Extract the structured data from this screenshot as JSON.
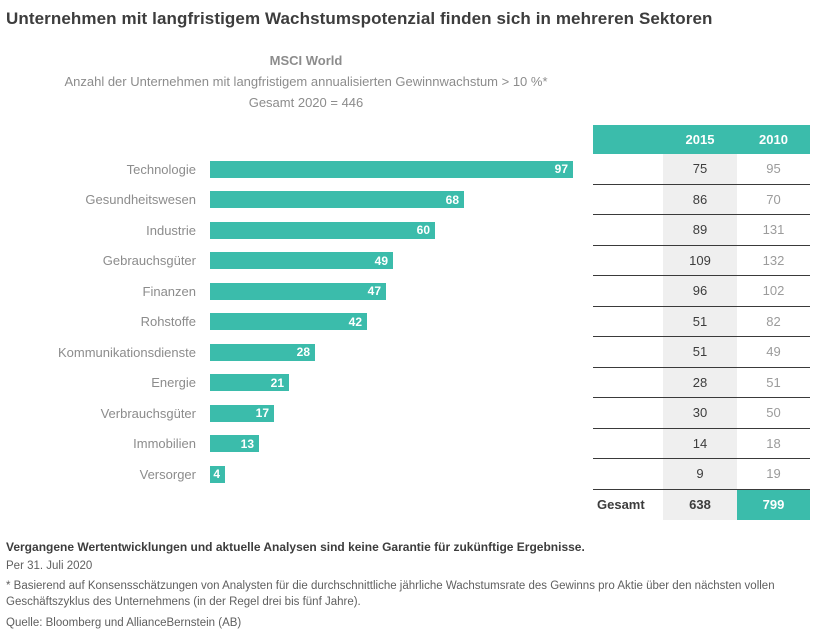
{
  "title": "Unternehmen mit langfristigem Wachstumspotenzial finden sich in mehreren Sektoren",
  "subtitle": {
    "index_name": "MSCI World",
    "description": "Anzahl der Unternehmen mit langfristigem annualisierten Gewinnwachstum > 10 %*",
    "total_line": "Gesamt 2020 = 446"
  },
  "chart_data": {
    "type": "bar",
    "orientation": "horizontal",
    "title": "MSCI World",
    "subtitle": "Anzahl der Unternehmen mit langfristigem annualisierten Gewinnwachstum > 10 %*",
    "categories": [
      "Technologie",
      "Gesundheitswesen",
      "Industrie",
      "Gebrauchsgüter",
      "Finanzen",
      "Rohstoffe",
      "Kommunikationsdienste",
      "Energie",
      "Verbrauchsgüter",
      "Immobilien",
      "Versorger"
    ],
    "series": [
      {
        "name": "2020",
        "values": [
          97,
          68,
          60,
          49,
          47,
          42,
          28,
          21,
          17,
          13,
          4
        ]
      },
      {
        "name": "2015",
        "values": [
          75,
          86,
          89,
          109,
          96,
          51,
          51,
          28,
          30,
          14,
          9
        ]
      },
      {
        "name": "2010",
        "values": [
          95,
          70,
          131,
          132,
          102,
          82,
          49,
          51,
          50,
          18,
          19
        ]
      }
    ],
    "totals": {
      "2020": 446,
      "2015": 638,
      "2010": 799
    },
    "xlim": [
      0,
      104
    ],
    "bar_labels": true,
    "grid": false,
    "legend_position": "none",
    "notes": "2020 values shown as teal bars with white value labels; 2015 and 2010 values shown as table columns on the right"
  },
  "table": {
    "columns": [
      "2015",
      "2010"
    ],
    "total_label": "Gesamt",
    "total_2015": "638",
    "total_2010": "799"
  },
  "footer": {
    "disclaimer": "Vergangene Wertentwicklungen und aktuelle Analysen sind keine Garantie für zukünftige Ergebnisse.",
    "as_of": "Per 31. Juli 2020",
    "footnote": "* Basierend auf Konsensschätzungen von Analysten für die durchschnittliche jährliche Wachstumsrate des Gewinns pro Aktie über den nächsten vollen Geschäftszyklus des Unternehmens (in der Regel drei bis fünf Jahre).",
    "source": "Quelle: Bloomberg und AllianceBernstein (AB)"
  },
  "colors": {
    "accent_teal": "#3BBCAB",
    "table_col_2015_bg": "#EFEFEF",
    "table_col_2010_text": "#9B9B9B",
    "row_line": "#3A3A3A",
    "title_text": "#3D3D3D",
    "muted_text": "#8C8C8C"
  }
}
